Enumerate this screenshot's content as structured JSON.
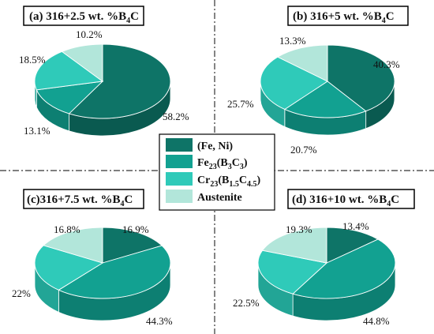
{
  "chart_data": [
    {
      "type": "pie",
      "title": "(a) 316+2.5 wt. %B4C",
      "categories": [
        "(Fe, Ni)",
        "Fe23(B3C3)",
        "Cr23(B1.5C4.5)",
        "Austenite"
      ],
      "values": [
        58.2,
        13.1,
        18.5,
        10.2
      ],
      "labels": [
        "58.2%",
        "13.1%",
        "18.5%",
        "10.2%"
      ]
    },
    {
      "type": "pie",
      "title": "(b) 316+5 wt. %B4C",
      "categories": [
        "(Fe, Ni)",
        "Fe23(B3C3)",
        "Cr23(B1.5C4.5)",
        "Austenite"
      ],
      "values": [
        40.3,
        20.7,
        25.7,
        13.3
      ],
      "labels": [
        "40.3%",
        "20.7%",
        "25.7%",
        "13.3%"
      ]
    },
    {
      "type": "pie",
      "title": "(c)316+7.5 wt. %B4C",
      "categories": [
        "(Fe, Ni)",
        "Fe23(B3C3)",
        "Cr23(B1.5C4.5)",
        "Austenite"
      ],
      "values": [
        16.9,
        44.3,
        22,
        16.8
      ],
      "labels": [
        "16.9%",
        "44.3%",
        "22%",
        "16.8%"
      ]
    },
    {
      "type": "pie",
      "title": "(d) 316+10 wt. %B4C",
      "categories": [
        "(Fe, Ni)",
        "Fe23(B3C3)",
        "Cr23(B1.5C4.5)",
        "Austenite"
      ],
      "values": [
        13.4,
        44.8,
        22.5,
        19.3
      ],
      "labels": [
        "13.4%",
        "44.8%",
        "22.5%",
        "19.3%"
      ]
    }
  ],
  "legend": {
    "placement": "center",
    "items": [
      {
        "text": "(Fe, Ni)",
        "sub": []
      },
      {
        "text": "Fe23(B3C3)",
        "sub": [
          [
            "Fe",
            ""
          ],
          [
            "23",
            "sub"
          ],
          [
            "(B",
            ""
          ],
          [
            "3",
            "sub"
          ],
          [
            "C",
            ""
          ],
          [
            "3",
            "sub"
          ],
          [
            ")",
            ""
          ]
        ]
      },
      {
        "text": "Cr23(B1.5C4.5)",
        "sub": [
          [
            "Cr",
            ""
          ],
          [
            "23",
            "sub"
          ],
          [
            "(B",
            ""
          ],
          [
            "1.5",
            "sub"
          ],
          [
            "C",
            ""
          ],
          [
            "4.5",
            "sub"
          ],
          [
            ")",
            ""
          ]
        ]
      },
      {
        "text": "Austenite",
        "sub": []
      }
    ]
  },
  "colors": {
    "series": [
      "#0e7467",
      "#12a191",
      "#2fcab9",
      "#b2e6da"
    ],
    "sides": [
      "#0a5a50",
      "#0d7f72",
      "#22a596",
      "#8cc7bb"
    ],
    "divider": "#333333"
  }
}
